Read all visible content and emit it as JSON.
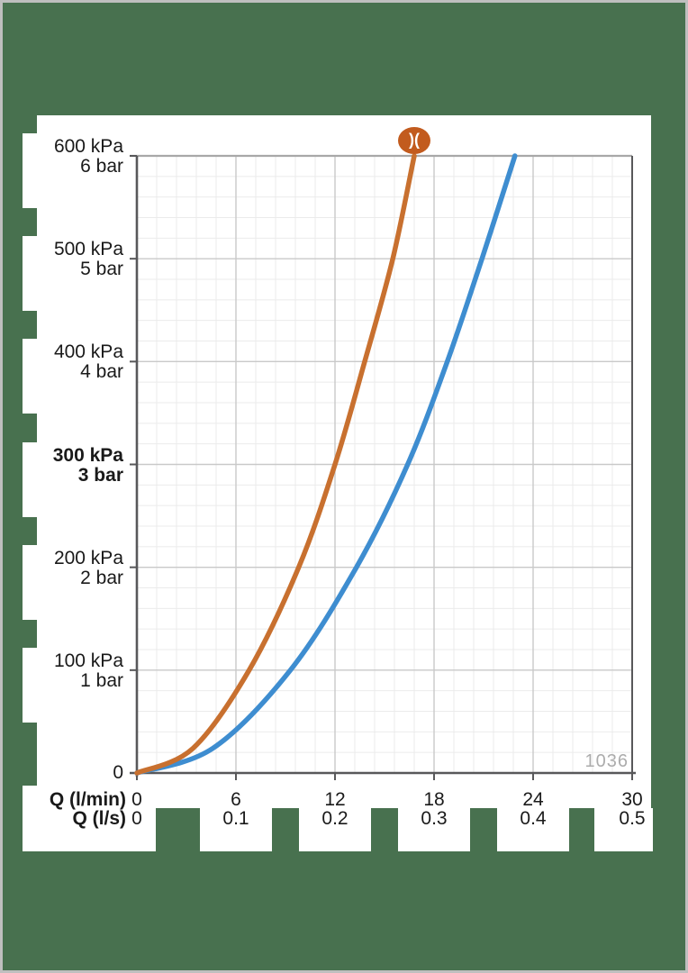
{
  "page": {
    "background_color": "#48714F",
    "frame_color": "#BFBFBF",
    "panel_color": "#FFFFFF"
  },
  "watermark": "1036",
  "logo": {
    "name": "hansgrohe-logo",
    "glyph": ")(",
    "color": "#C25B1E"
  },
  "chart_data": {
    "type": "line",
    "title": "",
    "x_axis": {
      "label_primary": "Q (l/min)",
      "label_secondary": "Q (l/s)",
      "range_lmin": [
        0,
        30
      ],
      "major_step_lmin": 6,
      "minor_step_lmin": 1.2,
      "ticks_lmin": [
        "0",
        "6",
        "12",
        "18",
        "24",
        "30"
      ],
      "ticks_ls": [
        "0",
        "0.1",
        "0.2",
        "0.3",
        "0.4",
        "0.5"
      ]
    },
    "y_axis": {
      "range_kpa": [
        0,
        600
      ],
      "major_step_kpa": 100,
      "minor_step_kpa": 20,
      "zero_label": "0",
      "ticks": [
        {
          "primary": "600 kPa",
          "secondary": "6 bar",
          "value": 600,
          "bold": false
        },
        {
          "primary": "500 kPa",
          "secondary": "5 bar",
          "value": 500,
          "bold": false
        },
        {
          "primary": "400 kPa",
          "secondary": "4 bar",
          "value": 400,
          "bold": false
        },
        {
          "primary": "300 kPa",
          "secondary": "3 bar",
          "value": 300,
          "bold": true
        },
        {
          "primary": "200 kPa",
          "secondary": "2 bar",
          "value": 200,
          "bold": false
        },
        {
          "primary": "100 kPa",
          "secondary": "1 bar",
          "value": 100,
          "bold": false
        }
      ]
    },
    "grid": {
      "minor_color": "#EBEBEB",
      "major_color": "#C9C9C9",
      "axis_color": "#58585A",
      "top_edge_color": "#A8A8A8",
      "grid_on": true
    },
    "series": [
      {
        "name": "curve-blue",
        "color": "#3E8DD0",
        "points_lmin_kpa": [
          [
            0,
            0
          ],
          [
            4.6,
            24
          ],
          [
            9.3,
            100
          ],
          [
            13.3,
            200
          ],
          [
            16.4,
            300
          ],
          [
            18.8,
            400
          ],
          [
            20.9,
            500
          ],
          [
            22.9,
            600
          ]
        ]
      },
      {
        "name": "curve-orange",
        "color": "#C8702F",
        "points_lmin_kpa": [
          [
            0,
            0
          ],
          [
            3.4,
            24
          ],
          [
            6.8,
            100
          ],
          [
            9.8,
            200
          ],
          [
            12.0,
            300
          ],
          [
            13.8,
            400
          ],
          [
            15.5,
            500
          ],
          [
            16.8,
            600
          ]
        ]
      }
    ]
  }
}
